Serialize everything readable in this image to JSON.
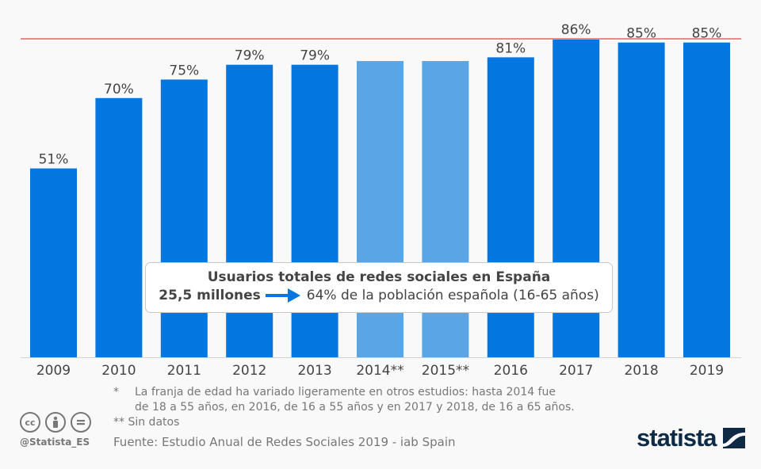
{
  "chart_data": {
    "type": "bar",
    "title": "Usuarios de redes sociales en España",
    "categories": [
      "2009",
      "2010",
      "2011",
      "2012",
      "2013",
      "2014**",
      "2015**",
      "2016",
      "2017",
      "2018",
      "2019"
    ],
    "values": [
      51,
      70,
      75,
      79,
      79,
      80,
      80,
      81,
      86,
      85,
      85
    ],
    "labels": [
      "51%",
      "70%",
      "75%",
      "79%",
      "79%",
      "",
      "",
      "81%",
      "86%",
      "85%",
      "85%"
    ],
    "estimated": [
      false,
      false,
      false,
      false,
      false,
      true,
      true,
      false,
      false,
      false,
      false
    ],
    "reference_line": {
      "value": 86,
      "color": "#e88a8a"
    },
    "colors": {
      "primary": "#0476e0",
      "estimated": "#5aa5e6"
    },
    "ylim": [
      0,
      86
    ],
    "xlabel": "",
    "ylabel": "",
    "grid": false
  },
  "callout": {
    "title": "Usuarios totales de redes sociales en España",
    "amount": "25,5 millones",
    "arrow_icon": "right-arrow-icon",
    "detail": "64% de la población española (16-65 años)"
  },
  "notes": [
    {
      "mark": "*",
      "text": "La franja de edad ha variado ligeramente en otros estudios: hasta 2014 fue",
      "text2": "de 18 a 55 años, en 2016, de 16 a 55 años y en 2017 y 2018, de 16 a 65 años."
    },
    {
      "mark": "**",
      "text": "Sin datos"
    }
  ],
  "source": "Fuente: Estudio Anual de Redes Sociales 2019 - iab Spain",
  "footer": {
    "license_icons": [
      "cc-icon",
      "attribution-icon",
      "no-derivatives-icon"
    ],
    "cc_text": "cc",
    "handle": "@Statista_ES",
    "logo_text": "statista"
  }
}
